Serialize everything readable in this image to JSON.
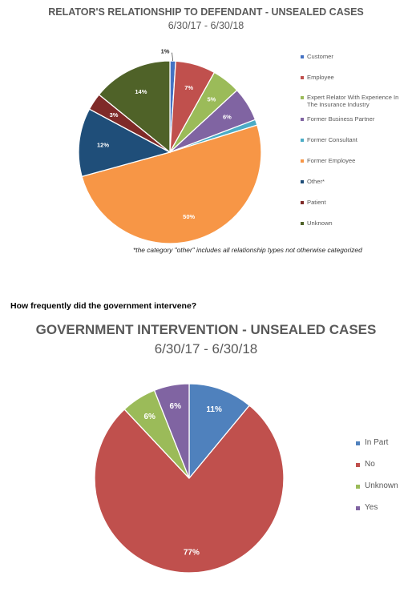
{
  "chart_data": [
    {
      "type": "pie",
      "title": "RELATOR'S RELATIONSHIP TO DEFENDANT - UNSEALED CASES",
      "subtitle": "6/30/17 - 6/30/18",
      "categories": [
        "Customer",
        "Employee",
        "Expert Relator With Experience In The Insurance Industry",
        "Former Business Partner",
        "Former Consultant",
        "Former Employee",
        "Other*",
        "Patient",
        "Unknown"
      ],
      "values": [
        1,
        7,
        5,
        6,
        1,
        50,
        12,
        3,
        14
      ],
      "data_labels": [
        "1%",
        "7%",
        "5%",
        "6%",
        "",
        "50%",
        "12%",
        "3%",
        "14%"
      ],
      "colors": [
        "#4472c4",
        "#c0504d",
        "#9bbb59",
        "#8064a2",
        "#4bacc6",
        "#f79646",
        "#1f4e79",
        "#7f2a28",
        "#4f6228"
      ],
      "legend": "right",
      "note": "*the category \"other\" includes all relationship types not otherwise categorized"
    },
    {
      "type": "pie",
      "title": "GOVERNMENT INTERVENTION - UNSEALED CASES",
      "subtitle": "6/30/17 - 6/30/18",
      "categories": [
        "In Part",
        "No",
        "Unknown",
        "Yes"
      ],
      "values": [
        11,
        77,
        6,
        6
      ],
      "data_labels": [
        "11%",
        "77%",
        "6%",
        "6%"
      ],
      "colors": [
        "#4f81bd",
        "#c0504d",
        "#9bbb59",
        "#8064a2"
      ],
      "legend": "right"
    }
  ],
  "question": "How frequently did the government intervene?"
}
